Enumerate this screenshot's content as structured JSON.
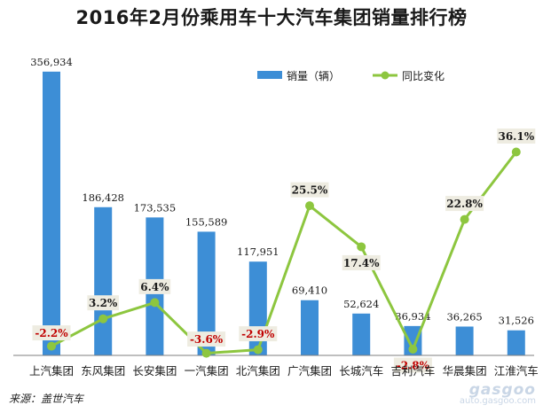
{
  "chart_data": {
    "type": "bar",
    "title": "2016年2月份乘用车十大汽车集团销量排行榜",
    "categories": [
      "上汽集团",
      "东风集团",
      "长安集团",
      "一汽集团",
      "北汽集团",
      "广汽集团",
      "长城汽车",
      "吉利汽车",
      "华晨集团",
      "江淮汽车"
    ],
    "series": [
      {
        "name": "销量（辆）",
        "type": "bar",
        "color": "#3d8ed6",
        "values": [
          356934,
          186428,
          173535,
          155589,
          117951,
          69410,
          52624,
          36934,
          36265,
          31526
        ],
        "labels": [
          "356,934",
          "186,428",
          "173,535",
          "155,589",
          "117,951",
          "69,410",
          "52,624",
          "36,934",
          "36,265",
          "31,526"
        ]
      },
      {
        "name": "同比变化",
        "type": "line",
        "color": "#8dc63f",
        "values": [
          -2.2,
          3.2,
          6.4,
          -3.6,
          -2.9,
          25.5,
          17.4,
          -2.8,
          22.8,
          36.1
        ],
        "labels": [
          "-2.2%",
          "3.2%",
          "6.4%",
          "-3.6%",
          "-2.9%",
          "25.5%",
          "17.4%",
          "-2.8%",
          "22.8%",
          "36.1%"
        ]
      }
    ],
    "legend_position": "top-right",
    "grid": false,
    "negative_label_color": "#c00000",
    "positive_label_color": "#1a1a1a"
  },
  "footer": {
    "source": "来源：盖世汽车"
  },
  "watermark": {
    "logo": "gasgoo",
    "url": "auto.gasgoo.com"
  }
}
